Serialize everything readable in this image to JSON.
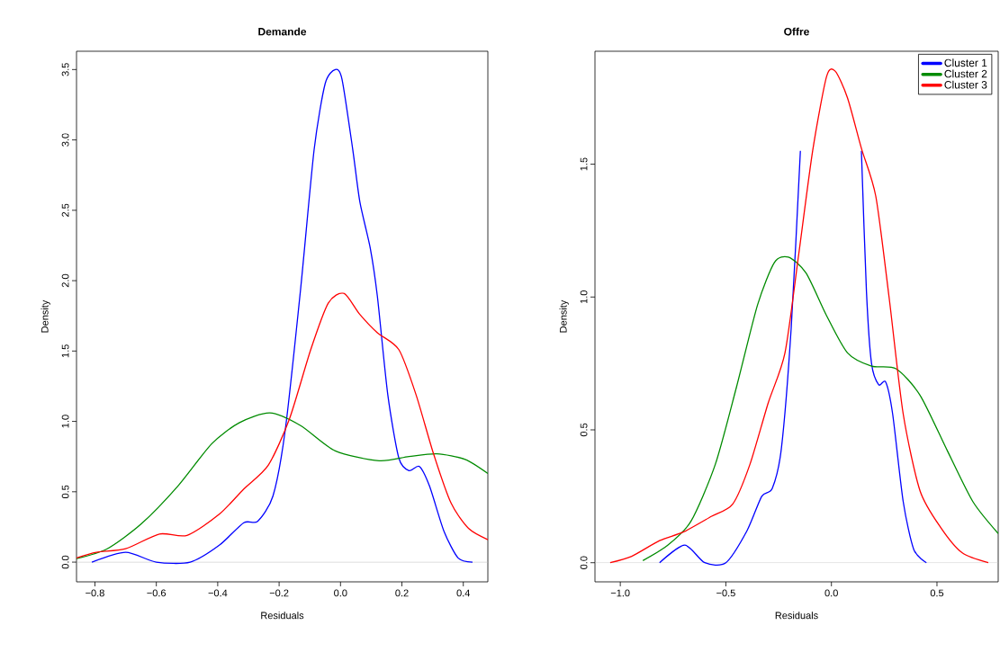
{
  "chart_data": [
    {
      "type": "line",
      "title": "Demande",
      "xlabel": "Residuals",
      "ylabel": "Density",
      "xlim": [
        -0.86,
        0.48
      ],
      "ylim": [
        -0.14,
        3.63
      ],
      "xticks": [
        {
          "value": -0.8,
          "label": "−0.8"
        },
        {
          "value": -0.6,
          "label": "−0.6"
        },
        {
          "value": -0.4,
          "label": "−0.4"
        },
        {
          "value": -0.2,
          "label": "−0.2"
        },
        {
          "value": 0,
          "label": "0.0"
        },
        0.2,
        0.4
      ],
      "yticks": [
        {
          "value": 0,
          "label": "0.0"
        },
        0.5,
        {
          "value": 1,
          "label": "1.0"
        },
        1.5,
        {
          "value": 2,
          "label": "2.0"
        },
        2.5,
        {
          "value": 3,
          "label": "3.0"
        },
        3.5
      ],
      "grid": false,
      "legend": false,
      "ref_lines": [
        {
          "axis": "y",
          "value": 0,
          "color": "#bebebe"
        }
      ],
      "series": [
        {
          "color": "#0000ff",
          "x": [
            -0.81,
            -0.7,
            -0.6,
            -0.49,
            -0.395,
            -0.315,
            -0.27,
            -0.22,
            -0.18,
            -0.13,
            -0.086,
            -0.05,
            -0.017,
            0.005,
            0.04,
            0.063,
            0.097,
            0.12,
            0.154,
            0.19,
            0.223,
            0.257,
            0.29,
            0.337,
            0.383,
            0.43
          ],
          "values": [
            0,
            0.07,
            0,
            0.0,
            0.12,
            0.28,
            0.29,
            0.47,
            0.94,
            1.94,
            2.93,
            3.4,
            3.5,
            3.43,
            2.93,
            2.56,
            2.23,
            1.89,
            1.19,
            0.74,
            0.65,
            0.68,
            0.54,
            0.22,
            0.03,
            0
          ]
        },
        {
          "color": "#008b00",
          "x": [
            -0.86,
            -0.76,
            -0.65,
            -0.53,
            -0.42,
            -0.33,
            -0.23,
            -0.13,
            -0.017,
            0.126,
            0.223,
            0.314,
            0.406,
            0.48
          ],
          "values": [
            0.025,
            0.095,
            0.27,
            0.54,
            0.84,
            0.99,
            1.06,
            0.97,
            0.79,
            0.72,
            0.75,
            0.77,
            0.73,
            0.63
          ]
        },
        {
          "color": "#ff0000",
          "x": [
            -0.86,
            -0.795,
            -0.7,
            -0.59,
            -0.5,
            -0.395,
            -0.315,
            -0.235,
            -0.166,
            -0.097,
            -0.04,
            0.011,
            0.063,
            0.12,
            0.19,
            0.246,
            0.303,
            0.36,
            0.417,
            0.48
          ],
          "values": [
            0.03,
            0.07,
            0.095,
            0.2,
            0.19,
            0.34,
            0.52,
            0.69,
            1.02,
            1.51,
            1.84,
            1.91,
            1.76,
            1.63,
            1.51,
            1.19,
            0.77,
            0.42,
            0.24,
            0.16
          ]
        }
      ]
    },
    {
      "type": "line",
      "title": "Offre",
      "xlabel": "Residuals",
      "ylabel": "Density",
      "xlim": [
        -1.12,
        0.79
      ],
      "ylim": [
        -0.072,
        1.925
      ],
      "xticks": [
        {
          "value": -1,
          "label": "−1.0"
        },
        {
          "value": -0.5,
          "label": "−0.5"
        },
        {
          "value": 0,
          "label": "0.0"
        },
        0.5
      ],
      "yticks": [
        {
          "value": 0,
          "label": "0.0"
        },
        0.5,
        {
          "value": 1,
          "label": "1.0"
        },
        1.5
      ],
      "grid": false,
      "legend": "top right",
      "ref_lines": [
        {
          "axis": "y",
          "value": 0,
          "color": "#bebebe"
        }
      ],
      "series": [
        {
          "name": "Cluster 1",
          "color": "#0000ff",
          "x": [
            -0.814,
            -0.695,
            -0.6,
            -0.5,
            -0.4,
            -0.33,
            -0.28,
            -0.237,
            -0.19,
            -0.147,
            -0.114,
            0.0,
            0.125,
            0.142,
            0.166,
            0.19,
            0.224,
            0.257,
            0.29,
            0.34,
            0.39,
            0.45
          ],
          "values": [
            0,
            0.066,
            0,
            0,
            0.12,
            0.25,
            0.28,
            0.43,
            0.89,
            1.55,
            null,
            null,
            null,
            1.55,
            1.02,
            0.75,
            0.67,
            0.68,
            0.56,
            0.23,
            0.05,
            0
          ]
        },
        {
          "name": "Cluster 2",
          "color": "#008b00",
          "x": [
            -0.893,
            -0.78,
            -0.666,
            -0.55,
            -0.45,
            -0.35,
            -0.27,
            -0.204,
            -0.12,
            -0.023,
            0.076,
            0.19,
            0.306,
            0.42,
            0.55,
            0.67,
            0.79
          ],
          "values": [
            0.008,
            0.063,
            0.155,
            0.37,
            0.66,
            0.97,
            1.13,
            1.15,
            1.09,
            0.93,
            0.79,
            0.74,
            0.73,
            0.63,
            0.42,
            0.23,
            0.11
          ]
        },
        {
          "name": "Cluster 3",
          "color": "#ff0000",
          "x": [
            -1.048,
            -0.946,
            -0.814,
            -0.7,
            -0.567,
            -0.468,
            -0.386,
            -0.3,
            -0.22,
            -0.155,
            -0.089,
            -0.023,
            0.018,
            0.076,
            0.142,
            0.21,
            0.273,
            0.34,
            0.42,
            0.52,
            0.62,
            0.743
          ],
          "values": [
            0,
            0.024,
            0.083,
            0.116,
            0.175,
            0.22,
            0.37,
            0.6,
            0.79,
            1.16,
            1.55,
            1.83,
            1.85,
            1.75,
            1.56,
            1.38,
            1.0,
            0.56,
            0.27,
            0.13,
            0.037,
            0
          ]
        }
      ]
    }
  ]
}
